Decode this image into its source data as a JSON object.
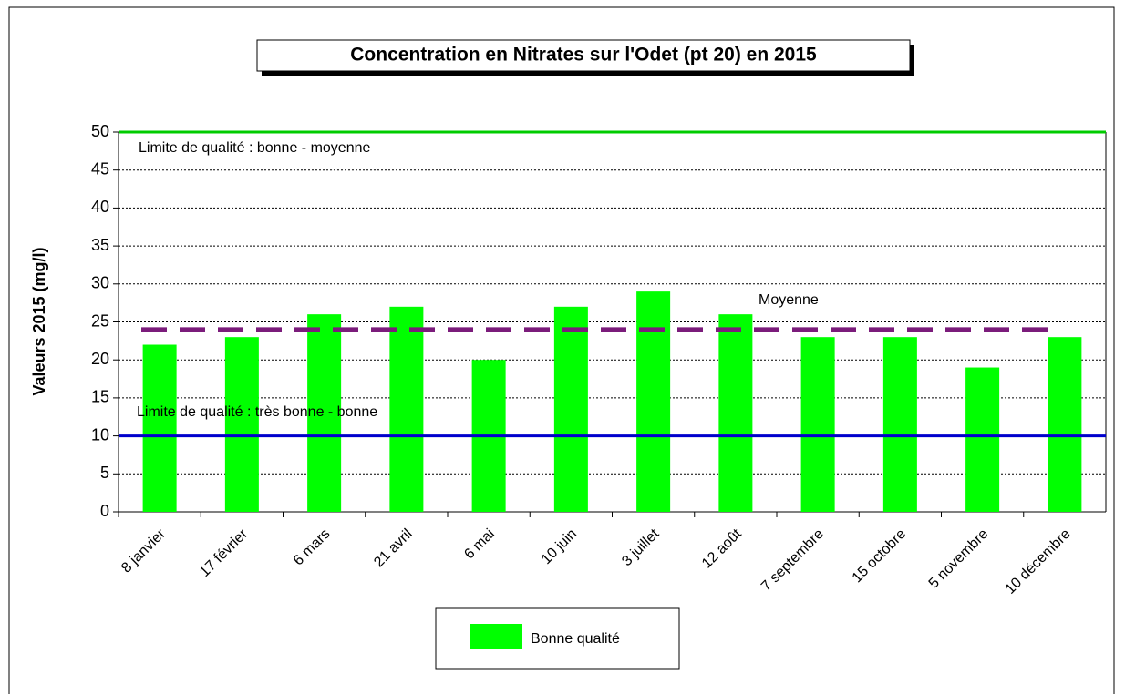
{
  "chart_data": {
    "type": "bar",
    "title": "Concentration en Nitrates sur l'Odet (pt 20) en 2015",
    "y_label": "Valeurs 2015 (mg/l)",
    "categories": [
      "8 janvier",
      "17 février",
      "6 mars",
      "21 avril",
      "6 mai",
      "10 juin",
      "3 juillet",
      "12 août",
      "7 septembre",
      "15 octobre",
      "5 novembre",
      "10 décembre"
    ],
    "series": [
      {
        "name": "Bonne qualité",
        "color": "#00ff00",
        "values": [
          22,
          23,
          26,
          27,
          20,
          27,
          29,
          26,
          23,
          23,
          19,
          23
        ]
      }
    ],
    "ylim": [
      0,
      50
    ],
    "yticks": [
      0,
      5,
      10,
      15,
      20,
      25,
      30,
      35,
      40,
      45,
      50
    ],
    "grid": true,
    "reference_lines": [
      {
        "value": 50,
        "color": "#00cc00",
        "dashed": false,
        "label": "Limite de qualité : bonne - moyenne"
      },
      {
        "value": 24,
        "color": "#7b1c7b",
        "dashed": true,
        "label": "Moyenne"
      },
      {
        "value": 10,
        "color": "#0000cc",
        "dashed": false,
        "label": "Limite de qualité : très bonne - bonne"
      }
    ],
    "legend": "bottom"
  }
}
